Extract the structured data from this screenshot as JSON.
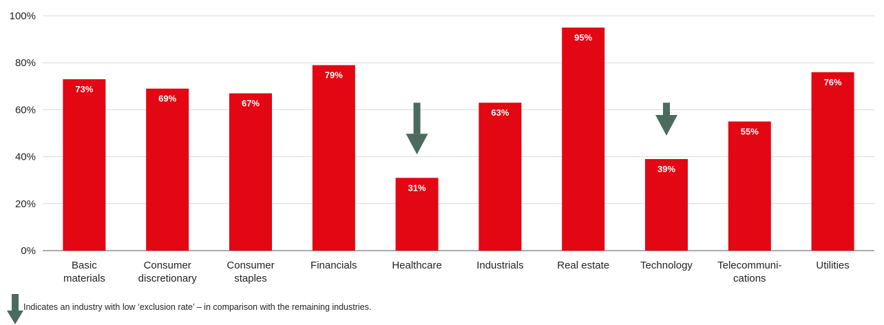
{
  "chart_data": {
    "type": "bar",
    "categories": [
      [
        "Basic",
        "materials"
      ],
      [
        "Consumer",
        "discretionary"
      ],
      [
        "Consumer",
        "staples"
      ],
      [
        "Financials"
      ],
      [
        "Healthcare"
      ],
      [
        "Industrials"
      ],
      [
        "Real estate"
      ],
      [
        "Technology"
      ],
      [
        "Telecommuni-",
        "cations"
      ],
      [
        "Utilities"
      ]
    ],
    "values": [
      73,
      69,
      67,
      79,
      31,
      63,
      95,
      39,
      55,
      76
    ],
    "data_labels": [
      "73%",
      "69%",
      "67%",
      "79%",
      "31%",
      "63%",
      "95%",
      "39%",
      "55%",
      "76%"
    ],
    "ylim": [
      0,
      100
    ],
    "yticks": [
      0,
      20,
      40,
      60,
      80,
      100
    ],
    "ytick_labels": [
      "0%",
      "20%",
      "40%",
      "60%",
      "80%",
      "100%"
    ],
    "grid": true,
    "low_exclusion_markers": [
      "Healthcare",
      "Technology"
    ],
    "colors": {
      "bar": "#e30613",
      "arrow": "#4a6b5d",
      "grid": "#d9d9d9"
    }
  },
  "legend": {
    "text": "Indicates an industry with low ‘exclusion rate’ – in comparison with the remaining industries.",
    "icon": "down-arrow-icon"
  }
}
